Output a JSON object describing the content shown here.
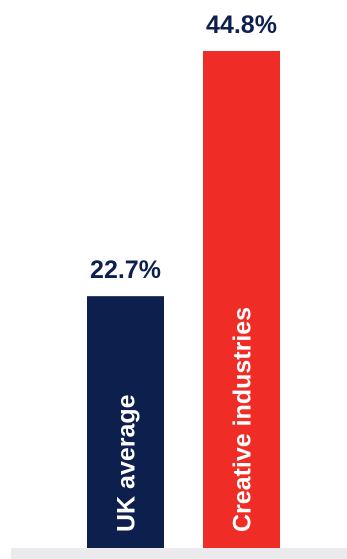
{
  "chart_data": {
    "type": "bar",
    "categories": [
      "UK average",
      "Creative industries"
    ],
    "values": [
      22.7,
      44.8
    ],
    "value_labels": [
      "22.7%",
      "44.8%"
    ],
    "bar_colors": [
      "#0d1f4c",
      "#f02c27"
    ],
    "label_color": "#0d1f4c",
    "baseline_color": "#ebebee",
    "title": "",
    "xlabel": "",
    "ylabel": "",
    "ylim": [
      0,
      44.8
    ],
    "grid": false,
    "legend": "none"
  }
}
